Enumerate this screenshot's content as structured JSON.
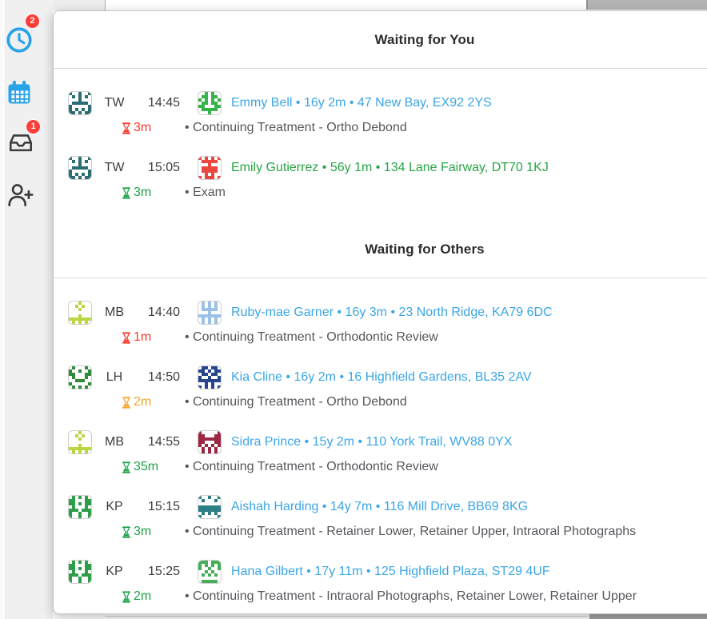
{
  "colors": {
    "accent_blue": "#29a3e7",
    "badge_red": "#fc3d39",
    "link_blue": "#3ba6e6",
    "green": "#27a544",
    "red": "#fa392d",
    "orange": "#f7a528",
    "duration_green": "#1fa24a",
    "text_dark": "#3e3e40",
    "text_gray": "#55575b"
  },
  "sidebar": {
    "items": [
      {
        "id": "recents",
        "icon": "clock-icon",
        "badge": "2"
      },
      {
        "id": "calendar",
        "icon": "calendar-icon",
        "badge": ""
      },
      {
        "id": "inbox",
        "icon": "inbox-tray-icon",
        "badge": "1"
      },
      {
        "id": "add-patient",
        "icon": "person-add-icon",
        "badge": ""
      }
    ]
  },
  "panel": {
    "sections": [
      {
        "title": "Waiting for You",
        "rows": [
          {
            "provider_initials": "TW",
            "appointment_time": "14:45",
            "provider_icon_color": "#2a6e74",
            "patient_icon_color": "#35b44a",
            "patient_info": "Emmy Bell • 16y 2m • 47 New Bay, EX92 2YS",
            "patient_info_color": "#3ba6e6",
            "wait_time": "3m",
            "wait_color": "#fa392d",
            "treatment": "• Continuing Treatment - Ortho Debond"
          },
          {
            "provider_initials": "TW",
            "appointment_time": "15:05",
            "provider_icon_color": "#2a6e74",
            "patient_icon_color": "#ea4740",
            "patient_info": "Emily Gutierrez • 56y 1m • 134 Lane Fairway, DT70 1KJ",
            "patient_info_color": "#27a544",
            "wait_time": "3m",
            "wait_color": "#1fa24a",
            "treatment": "• Exam"
          }
        ]
      },
      {
        "title": "Waiting for Others",
        "rows": [
          {
            "provider_initials": "MB",
            "appointment_time": "14:40",
            "provider_icon_color": "#b9d643",
            "patient_icon_color": "#9cc1e6",
            "patient_info": "Ruby-mae Garner • 16y 3m • 23 North Ridge, KA79 6DC",
            "patient_info_color": "#3ba6e6",
            "wait_time": "1m",
            "wait_color": "#fa392d",
            "treatment": "• Continuing Treatment - Orthodontic Review"
          },
          {
            "provider_initials": "LH",
            "appointment_time": "14:50",
            "provider_icon_color": "#2f8a3a",
            "patient_icon_color": "#27458c",
            "patient_info": "Kia Cline • 16y 2m • 16 Highfield Gardens, BL35 2AV",
            "patient_info_color": "#3ba6e6",
            "wait_time": "2m",
            "wait_color": "#f7a528",
            "treatment": "• Continuing Treatment - Ortho Debond"
          },
          {
            "provider_initials": "MB",
            "appointment_time": "14:55",
            "provider_icon_color": "#b9d643",
            "patient_icon_color": "#9c2742",
            "patient_info": "Sidra Prince • 15y 2m • 110 York Trail, WV88 0YX",
            "patient_info_color": "#3ba6e6",
            "wait_time": "35m",
            "wait_color": "#1fa24a",
            "treatment": "• Continuing Treatment - Orthodontic Review"
          },
          {
            "provider_initials": "KP",
            "appointment_time": "15:15",
            "provider_icon_color": "#2f9e4a",
            "patient_icon_color": "#2b7f85",
            "patient_info": "Aishah Harding • 14y 7m • 116 Mill Drive, BB69 8KG",
            "patient_info_color": "#3ba6e6",
            "wait_time": "3m",
            "wait_color": "#1fa24a",
            "treatment": "• Continuing Treatment - Retainer Lower, Retainer Upper, Intraoral Photographs"
          },
          {
            "provider_initials": "KP",
            "appointment_time": "15:25",
            "provider_icon_color": "#2f9e4a",
            "patient_icon_color": "#46ae58",
            "patient_info": "Hana Gilbert • 17y 11m • 125 Highfield Plaza, ST29 4UF",
            "patient_info_color": "#3ba6e6",
            "wait_time": "2m",
            "wait_color": "#1fa24a",
            "treatment": "• Continuing Treatment - Intraoral Photographs, Retainer Lower, Retainer Upper"
          }
        ]
      }
    ]
  }
}
